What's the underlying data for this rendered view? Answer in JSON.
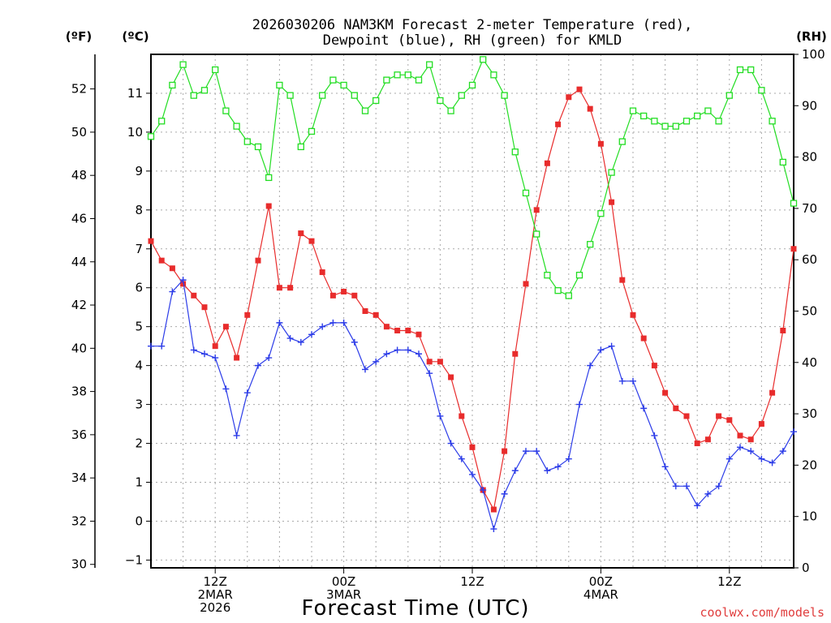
{
  "title_line1": "2026030206 NAM3KM Forecast 2-meter Temperature (red),",
  "title_line2": "Dewpoint (blue), RH (green) for KMLD",
  "unit_f": "(ºF)",
  "unit_c": "(ºC)",
  "unit_rh": "(RH)",
  "credit": "coolwx.com/models",
  "chart_data": {
    "type": "line",
    "title": "2026030206 NAM3KM Forecast 2-meter Temperature (red), Dewpoint (blue), RH (green) for KMLD",
    "xlabel": "Forecast Time (UTC)",
    "x_unit": "forecast hours from 2026-03-02 06Z",
    "x_range": [
      0,
      60
    ],
    "x_ticks": [
      {
        "hour": 6,
        "labels": [
          "12Z",
          "2MAR",
          "2026"
        ]
      },
      {
        "hour": 18,
        "labels": [
          "00Z",
          "3MAR"
        ]
      },
      {
        "hour": 30,
        "labels": [
          "12Z"
        ]
      },
      {
        "hour": 42,
        "labels": [
          "00Z",
          "4MAR"
        ]
      },
      {
        "hour": 54,
        "labels": [
          "12Z"
        ]
      }
    ],
    "axes": {
      "celsius": {
        "label": "(ºC)",
        "range": [
          -1.2,
          12.0
        ],
        "ticks": [
          -1,
          0,
          1,
          2,
          3,
          4,
          5,
          6,
          7,
          8,
          9,
          10,
          11
        ]
      },
      "fahrenheit": {
        "label": "(ºF)",
        "range": [
          29.84,
          53.6
        ],
        "ticks": [
          30,
          32,
          34,
          36,
          38,
          40,
          42,
          44,
          46,
          48,
          50,
          52
        ]
      },
      "rh": {
        "label": "(RH)",
        "range": [
          0,
          100
        ],
        "ticks": [
          0,
          10,
          20,
          30,
          40,
          50,
          60,
          70,
          80,
          90,
          100
        ]
      }
    },
    "grid": true,
    "series": [
      {
        "name": "Temperature",
        "axis": "celsius",
        "color": "#e82c2c",
        "marker": "filled-square",
        "x": [
          0,
          1,
          2,
          3,
          4,
          5,
          6,
          7,
          8,
          9,
          10,
          11,
          12,
          13,
          14,
          15,
          16,
          17,
          18,
          19,
          20,
          21,
          22,
          23,
          24,
          25,
          26,
          27,
          28,
          29,
          30,
          31,
          32,
          33,
          34,
          35,
          36,
          37,
          38,
          39,
          40,
          41,
          42,
          43,
          44,
          45,
          46,
          47,
          48,
          49,
          50,
          51,
          52,
          53,
          54,
          55,
          56,
          57,
          58,
          59,
          60
        ],
        "values": [
          7.2,
          6.7,
          6.5,
          6.1,
          5.8,
          5.5,
          4.5,
          5.0,
          4.2,
          5.3,
          6.7,
          8.1,
          6.0,
          6.0,
          7.4,
          7.2,
          6.4,
          5.8,
          5.9,
          5.8,
          5.4,
          5.3,
          5.0,
          4.9,
          4.9,
          4.8,
          4.1,
          4.1,
          3.7,
          2.7,
          1.9,
          0.8,
          0.3,
          1.8,
          4.3,
          6.1,
          8.0,
          9.2,
          10.2,
          10.9,
          11.1,
          10.6,
          9.7,
          8.2,
          6.2,
          5.3,
          4.7,
          4.0,
          3.3,
          2.9,
          2.7,
          2.0,
          2.1,
          2.7,
          2.6,
          2.2,
          2.1,
          2.5,
          3.3,
          4.9,
          7.0
        ]
      },
      {
        "name": "Dewpoint",
        "axis": "celsius",
        "color": "#2c3ce8",
        "marker": "plus",
        "x": [
          0,
          1,
          2,
          3,
          4,
          5,
          6,
          7,
          8,
          9,
          10,
          11,
          12,
          13,
          14,
          15,
          16,
          17,
          18,
          19,
          20,
          21,
          22,
          23,
          24,
          25,
          26,
          27,
          28,
          29,
          30,
          31,
          32,
          33,
          34,
          35,
          36,
          37,
          38,
          39,
          40,
          41,
          42,
          43,
          44,
          45,
          46,
          47,
          48,
          49,
          50,
          51,
          52,
          53,
          54,
          55,
          56,
          57,
          58,
          59,
          60
        ],
        "values": [
          4.5,
          4.5,
          5.9,
          6.2,
          4.4,
          4.3,
          4.2,
          3.4,
          2.2,
          3.3,
          4.0,
          4.2,
          5.1,
          4.7,
          4.6,
          4.8,
          5.0,
          5.1,
          5.1,
          4.6,
          3.9,
          4.1,
          4.3,
          4.4,
          4.4,
          4.3,
          3.8,
          2.7,
          2.0,
          1.6,
          1.2,
          0.8,
          -0.2,
          0.7,
          1.3,
          1.8,
          1.8,
          1.3,
          1.4,
          1.6,
          3.0,
          4.0,
          4.4,
          4.5,
          3.6,
          3.6,
          2.9,
          2.2,
          1.4,
          0.9,
          0.9,
          0.4,
          0.7,
          0.9,
          1.6,
          1.9,
          1.8,
          1.6,
          1.5,
          1.8,
          2.3
        ]
      },
      {
        "name": "RH",
        "axis": "rh",
        "color": "#22dd22",
        "marker": "open-square",
        "x": [
          0,
          1,
          2,
          3,
          4,
          5,
          6,
          7,
          8,
          9,
          10,
          11,
          12,
          13,
          14,
          15,
          16,
          17,
          18,
          19,
          20,
          21,
          22,
          23,
          24,
          25,
          26,
          27,
          28,
          29,
          30,
          31,
          32,
          33,
          34,
          35,
          36,
          37,
          38,
          39,
          40,
          41,
          42,
          43,
          44,
          45,
          46,
          47,
          48,
          49,
          50,
          51,
          52,
          53,
          54,
          55,
          56,
          57,
          58,
          59,
          60
        ],
        "values": [
          84,
          87,
          94,
          98,
          92,
          93,
          97,
          89,
          86,
          83,
          82,
          76,
          94,
          92,
          82,
          85,
          92,
          95,
          94,
          92,
          89,
          91,
          95,
          96,
          96,
          95,
          98,
          91,
          89,
          92,
          94,
          99,
          96,
          92,
          81,
          73,
          65,
          57,
          54,
          53,
          57,
          63,
          69,
          77,
          83,
          89,
          88,
          87,
          86,
          86,
          87,
          88,
          89,
          87,
          92,
          97,
          97,
          93,
          87,
          79,
          71
        ]
      }
    ]
  }
}
